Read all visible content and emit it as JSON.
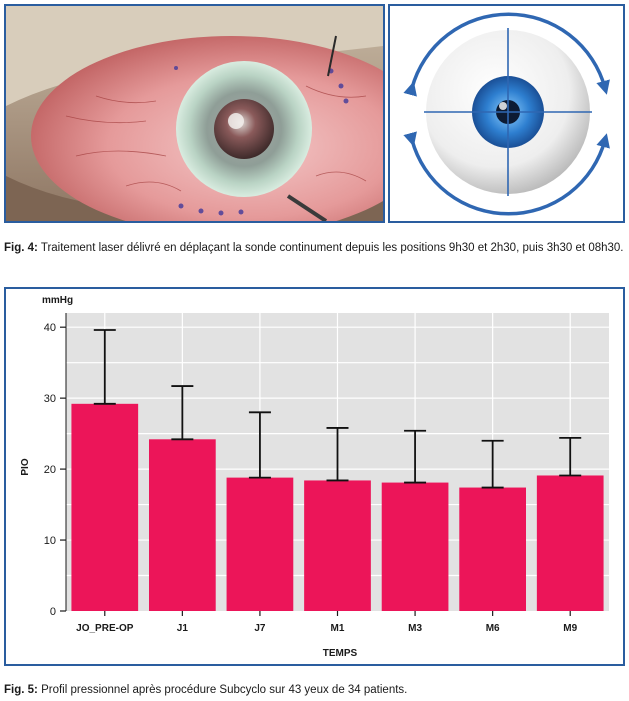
{
  "figure4": {
    "label": "Fig. 4:",
    "text": " Traitement laser délivré en déplaçant la sonde continument depuis les positions 9h30 et 2h30, puis 3h30 et 08h30."
  },
  "figure5": {
    "label": "Fig. 5:",
    "text": " Profil pressionnel après procédure Subcyclo sur 43 yeux de 34 patients."
  },
  "colors": {
    "frame": "#2a5d9f",
    "bar": "#ec1559",
    "plot_bg": "#e2e2e2",
    "grid": "#ffffff"
  },
  "chart_data": {
    "type": "bar",
    "title": "",
    "unit_label": "mmHg",
    "xlabel": "TEMPS",
    "ylabel": "PIO",
    "categories": [
      "JO_PRE-OP",
      "J1",
      "J7",
      "M1",
      "M3",
      "M6",
      "M9"
    ],
    "values": [
      29.2,
      24.2,
      18.8,
      18.4,
      18.1,
      17.4,
      19.1
    ],
    "error_upper": [
      39.6,
      31.7,
      28.0,
      25.8,
      25.4,
      24.0,
      24.4
    ],
    "ylim": [
      0,
      42
    ],
    "yticks": [
      0,
      10,
      20,
      30,
      40
    ],
    "grid": true,
    "legend": "none"
  }
}
